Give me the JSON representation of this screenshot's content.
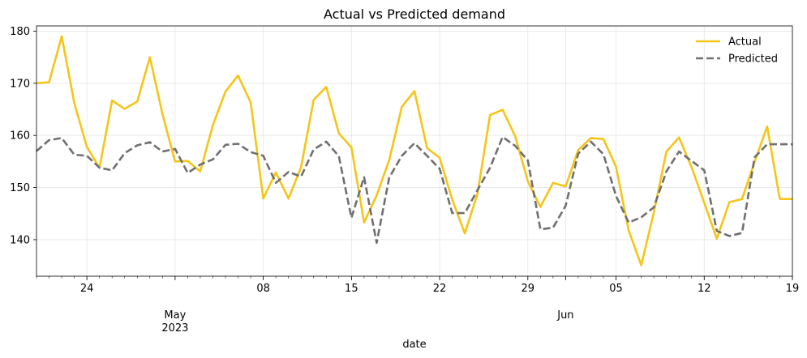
{
  "chart_data": {
    "type": "line",
    "title": "Actual vs Predicted demand",
    "xlabel": "date",
    "ylabel": "",
    "x_start": "2023-04-20",
    "x_end": "2023-06-19",
    "ylim": [
      133,
      181
    ],
    "yticks": [
      140,
      150,
      160,
      170,
      180
    ],
    "grid": true,
    "legend_position": "upper right",
    "x_tick_labels": [
      {
        "date": "2023-04-24",
        "label": "24"
      },
      {
        "date": "2023-05-01",
        "label": "May\n2023"
      },
      {
        "date": "2023-05-08",
        "label": "08"
      },
      {
        "date": "2023-05-15",
        "label": "15"
      },
      {
        "date": "2023-05-22",
        "label": "22"
      },
      {
        "date": "2023-05-29",
        "label": "29"
      },
      {
        "date": "2023-06-01",
        "label": "Jun"
      },
      {
        "date": "2023-06-05",
        "label": "05"
      },
      {
        "date": "2023-06-12",
        "label": "12"
      },
      {
        "date": "2023-06-19",
        "label": "19"
      }
    ],
    "x": [
      "2023-04-20",
      "2023-04-21",
      "2023-04-22",
      "2023-04-23",
      "2023-04-24",
      "2023-04-25",
      "2023-04-26",
      "2023-04-27",
      "2023-04-28",
      "2023-04-29",
      "2023-04-30",
      "2023-05-01",
      "2023-05-02",
      "2023-05-03",
      "2023-05-04",
      "2023-05-05",
      "2023-05-06",
      "2023-05-07",
      "2023-05-08",
      "2023-05-09",
      "2023-05-10",
      "2023-05-11",
      "2023-05-12",
      "2023-05-13",
      "2023-05-14",
      "2023-05-15",
      "2023-05-16",
      "2023-05-17",
      "2023-05-18",
      "2023-05-19",
      "2023-05-20",
      "2023-05-21",
      "2023-05-22",
      "2023-05-23",
      "2023-05-24",
      "2023-05-25",
      "2023-05-26",
      "2023-05-27",
      "2023-05-28",
      "2023-05-29",
      "2023-05-30",
      "2023-05-31",
      "2023-06-01",
      "2023-06-02",
      "2023-06-03",
      "2023-06-04",
      "2023-06-05",
      "2023-06-06",
      "2023-06-07",
      "2023-06-08",
      "2023-06-09",
      "2023-06-10",
      "2023-06-11",
      "2023-06-12",
      "2023-06-13",
      "2023-06-14",
      "2023-06-15",
      "2023-06-16",
      "2023-06-17",
      "2023-06-18",
      "2023-06-19"
    ],
    "series": [
      {
        "name": "Actual",
        "color": "#f5c518",
        "style": "solid",
        "values": [
          170.0,
          170.2,
          179.0,
          166.2,
          157.8,
          153.8,
          166.7,
          165.1,
          166.5,
          175.0,
          164.1,
          155.0,
          155.1,
          153.1,
          162.0,
          168.4,
          171.5,
          166.3,
          147.9,
          152.9,
          147.9,
          153.9,
          166.8,
          169.3,
          160.4,
          157.7,
          143.3,
          148.5,
          155.3,
          165.5,
          168.5,
          157.6,
          155.7,
          147.7,
          141.2,
          148.8,
          163.9,
          164.9,
          159.8,
          151.2,
          146.3,
          150.9,
          150.2,
          157.2,
          159.5,
          159.3,
          154.0,
          141.8,
          135.1,
          145.2,
          156.9,
          159.6,
          153.9,
          147.1,
          140.2,
          147.2,
          147.8,
          154.9,
          161.7,
          147.8,
          147.8
        ]
      },
      {
        "name": "Predicted",
        "color": "#707070",
        "style": "dashed",
        "values": [
          157.0,
          159.1,
          159.5,
          156.3,
          156.1,
          153.8,
          153.3,
          156.6,
          158.1,
          158.7,
          156.9,
          157.4,
          152.8,
          154.4,
          155.4,
          158.2,
          158.4,
          156.8,
          156.1,
          150.9,
          153.0,
          152.1,
          157.3,
          158.8,
          156.0,
          144.2,
          152.0,
          139.4,
          151.9,
          156.1,
          158.5,
          156.1,
          153.6,
          145.1,
          145.1,
          149.5,
          153.8,
          159.7,
          158.0,
          155.2,
          142.0,
          142.3,
          146.5,
          156.5,
          158.8,
          156.4,
          148.4,
          143.3,
          144.3,
          146.2,
          153.1,
          156.9,
          155.1,
          153.3,
          141.7,
          140.7,
          141.3,
          155.8,
          158.3,
          158.3,
          158.3
        ]
      }
    ]
  }
}
